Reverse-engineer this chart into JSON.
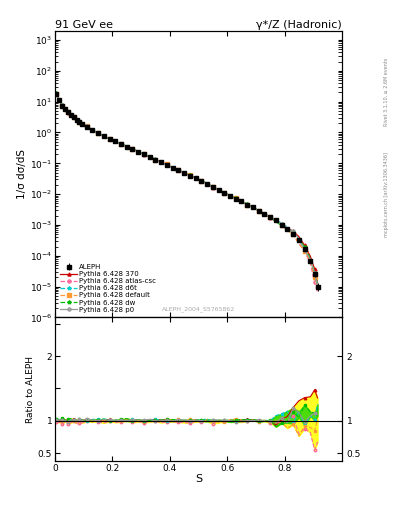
{
  "title_left": "91 GeV ee",
  "title_right": "γ*/Z (Hadronic)",
  "ylabel_main": "1/σ dσ/dS",
  "ylabel_ratio": "Ratio to ALEPH",
  "xlabel": "S",
  "watermark": "ALEPH_2004_S5765862",
  "right_label": "mcplots.cern.ch [arXiv:1306.3436]",
  "right_label2": "Rivet 3.1.10, ≥ 2.6M events",
  "ylim_main": [
    1e-06,
    2000.0
  ],
  "ylim_ratio": [
    0.38,
    2.6
  ],
  "xlim": [
    0.0,
    1.0
  ],
  "colors": {
    "ALEPH": "#000000",
    "370": "#cc0000",
    "atlas-csc": "#ff6699",
    "d6t": "#00cccc",
    "default": "#ff9933",
    "dw": "#00bb00",
    "p0": "#999999"
  },
  "band_color_inner": "#00cc00",
  "band_color_outer": "#ffff00",
  "aleph_x": [
    0.005,
    0.015,
    0.025,
    0.035,
    0.045,
    0.055,
    0.065,
    0.075,
    0.085,
    0.095,
    0.11,
    0.13,
    0.15,
    0.17,
    0.19,
    0.21,
    0.23,
    0.25,
    0.27,
    0.29,
    0.31,
    0.33,
    0.35,
    0.37,
    0.39,
    0.41,
    0.43,
    0.45,
    0.47,
    0.49,
    0.51,
    0.53,
    0.55,
    0.57,
    0.59,
    0.61,
    0.63,
    0.65,
    0.67,
    0.69,
    0.71,
    0.73,
    0.75,
    0.77,
    0.79,
    0.81,
    0.83,
    0.85,
    0.87,
    0.89,
    0.905,
    0.915
  ],
  "aleph_y": [
    18.0,
    11.0,
    7.5,
    5.8,
    4.6,
    3.7,
    3.1,
    2.6,
    2.2,
    1.9,
    1.55,
    1.2,
    0.95,
    0.75,
    0.62,
    0.51,
    0.42,
    0.35,
    0.29,
    0.24,
    0.195,
    0.16,
    0.132,
    0.108,
    0.089,
    0.073,
    0.06,
    0.049,
    0.04,
    0.033,
    0.027,
    0.022,
    0.017,
    0.014,
    0.011,
    0.009,
    0.0072,
    0.0058,
    0.0046,
    0.0037,
    0.0029,
    0.0023,
    0.0018,
    0.0014,
    0.001,
    0.00075,
    0.00052,
    0.00032,
    0.00016,
    7e-05,
    2.5e-05,
    1e-05
  ],
  "aleph_yerr_lo": [
    1.2,
    0.5,
    0.3,
    0.2,
    0.15,
    0.12,
    0.1,
    0.08,
    0.07,
    0.06,
    0.05,
    0.04,
    0.03,
    0.025,
    0.02,
    0.016,
    0.013,
    0.011,
    0.009,
    0.007,
    0.006,
    0.005,
    0.004,
    0.003,
    0.0025,
    0.002,
    0.0016,
    0.0013,
    0.001,
    0.0008,
    0.0006,
    0.0005,
    0.0004,
    0.0003,
    0.00025,
    0.0002,
    0.00016,
    0.00013,
    0.0001,
    8e-05,
    7e-05,
    6e-05,
    5e-05,
    4e-05,
    3e-05,
    2.5e-05,
    2e-05,
    1.5e-05,
    1e-05,
    8e-06,
    5e-06,
    3e-06
  ],
  "ratio_x": [
    0.005,
    0.015,
    0.025,
    0.035,
    0.045,
    0.055,
    0.065,
    0.075,
    0.085,
    0.095,
    0.11,
    0.13,
    0.15,
    0.17,
    0.19,
    0.21,
    0.23,
    0.25,
    0.27,
    0.29,
    0.31,
    0.33,
    0.35,
    0.37,
    0.39,
    0.41,
    0.43,
    0.45,
    0.47,
    0.49,
    0.51,
    0.53,
    0.55,
    0.57,
    0.59,
    0.61,
    0.63,
    0.65,
    0.67,
    0.69,
    0.71,
    0.73,
    0.75,
    0.77,
    0.79,
    0.81,
    0.83,
    0.85,
    0.87,
    0.89,
    0.905,
    0.915
  ]
}
